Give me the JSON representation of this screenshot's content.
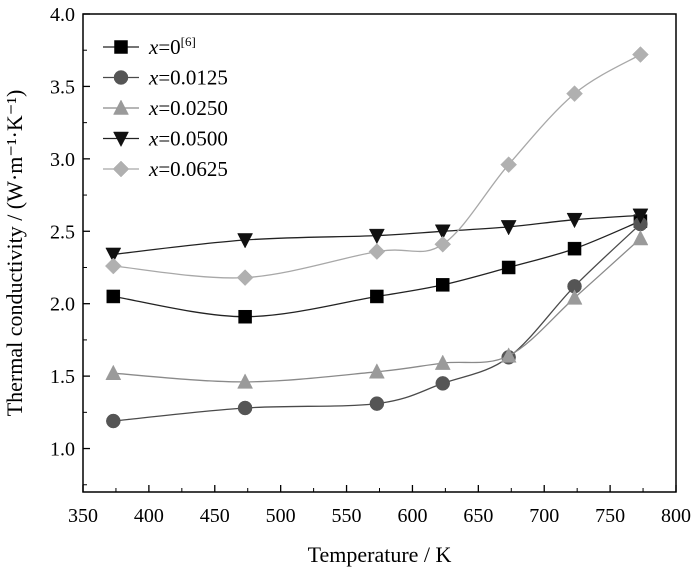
{
  "chart_data": {
    "type": "line",
    "title": "",
    "xlabel": "Temperature / K",
    "ylabel": "Thermal conductivity / (W·m⁻¹·K⁻¹)",
    "xlim": [
      350,
      800
    ],
    "ylim": [
      0.7,
      4.0
    ],
    "xticks": [
      350,
      400,
      450,
      500,
      550,
      600,
      650,
      700,
      750,
      800
    ],
    "yticks": [
      1.0,
      1.5,
      2.0,
      2.5,
      3.0,
      3.5,
      4.0
    ],
    "ytick_labels": [
      "1.0",
      "1.5",
      "2.0",
      "2.5",
      "3.0",
      "3.5",
      "4.0"
    ],
    "x": [
      373,
      473,
      573,
      623,
      673,
      723,
      773
    ],
    "grid": false,
    "legend_position": "top-left",
    "series": [
      {
        "name": "x=0",
        "name_var": "x",
        "name_rest": "=0",
        "name_sup": "[6]",
        "marker": "square",
        "color": "#000000",
        "line_color": "#222222",
        "values": [
          2.05,
          1.91,
          2.05,
          2.13,
          2.25,
          2.38,
          2.57
        ]
      },
      {
        "name": "x=0.0125",
        "name_var": "x",
        "name_rest": "=0.0125",
        "name_sup": "",
        "marker": "circle",
        "color": "#555555",
        "line_color": "#4a4a4a",
        "values": [
          1.19,
          1.28,
          1.31,
          1.45,
          1.63,
          2.12,
          2.55
        ]
      },
      {
        "name": "x=0.0250",
        "name_var": "x",
        "name_rest": "=0.0250",
        "name_sup": "",
        "marker": "triangle-up",
        "color": "#9a9a9a",
        "line_color": "#8a8a8a",
        "values": [
          1.52,
          1.46,
          1.53,
          1.59,
          1.64,
          2.04,
          2.45
        ]
      },
      {
        "name": "x=0.0500",
        "name_var": "x",
        "name_rest": "=0.0500",
        "name_sup": "",
        "marker": "triangle-down",
        "color": "#111111",
        "line_color": "#222222",
        "values": [
          2.34,
          2.44,
          2.47,
          2.5,
          2.53,
          2.58,
          2.61
        ]
      },
      {
        "name": "x=0.0625",
        "name_var": "x",
        "name_rest": "=0.0625",
        "name_sup": "",
        "marker": "diamond",
        "color": "#b0b0b0",
        "line_color": "#a8a8a8",
        "values": [
          2.26,
          2.18,
          2.36,
          2.41,
          2.96,
          3.45,
          3.72
        ]
      }
    ]
  }
}
